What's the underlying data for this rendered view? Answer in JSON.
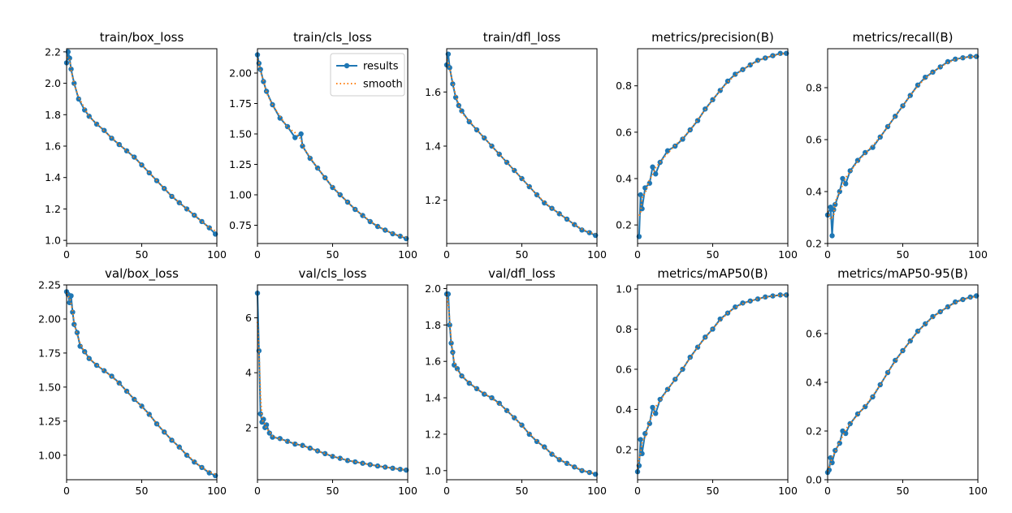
{
  "legend": {
    "labels": [
      "results",
      "smooth"
    ]
  },
  "colors": {
    "results": "#1f77b4",
    "smooth": "#ff7f0e",
    "axes": "#000000"
  },
  "chart_data": [
    {
      "type": "line",
      "title": "train/box_loss",
      "xlim": [
        0,
        100
      ],
      "ylim": [
        0.98,
        2.22
      ],
      "xticks": [
        "0",
        "50",
        "100"
      ],
      "xtick_values": [
        0,
        50,
        100
      ],
      "yticks": [
        "1.0",
        "1.2",
        "1.4",
        "1.6",
        "1.8",
        "2.0",
        "2.2"
      ],
      "ytick_values": [
        1.0,
        1.2,
        1.4,
        1.6,
        1.8,
        2.0,
        2.2
      ],
      "x": [
        0,
        1,
        2,
        3,
        5,
        8,
        12,
        15,
        20,
        25,
        30,
        35,
        40,
        45,
        50,
        55,
        60,
        65,
        70,
        75,
        80,
        85,
        90,
        95,
        99
      ],
      "y": [
        2.13,
        2.2,
        2.16,
        2.09,
        2.0,
        1.9,
        1.83,
        1.79,
        1.74,
        1.7,
        1.65,
        1.61,
        1.57,
        1.53,
        1.48,
        1.43,
        1.38,
        1.33,
        1.28,
        1.24,
        1.2,
        1.16,
        1.12,
        1.08,
        1.04
      ]
    },
    {
      "type": "line",
      "title": "train/cls_loss",
      "xlim": [
        0,
        100
      ],
      "ylim": [
        0.6,
        2.2
      ],
      "xticks": [
        "0",
        "50",
        "100"
      ],
      "xtick_values": [
        0,
        50,
        100
      ],
      "yticks": [
        "0.75",
        "1.00",
        "1.25",
        "1.50",
        "1.75",
        "2.00"
      ],
      "ytick_values": [
        0.75,
        1.0,
        1.25,
        1.5,
        1.75,
        2.0
      ],
      "x": [
        0,
        1,
        2,
        4,
        6,
        10,
        15,
        20,
        25,
        29,
        30,
        35,
        40,
        45,
        50,
        55,
        60,
        65,
        70,
        75,
        80,
        85,
        90,
        95,
        99
      ],
      "y": [
        2.15,
        2.08,
        2.03,
        1.93,
        1.85,
        1.74,
        1.63,
        1.56,
        1.47,
        1.5,
        1.4,
        1.3,
        1.22,
        1.14,
        1.06,
        1.0,
        0.94,
        0.88,
        0.83,
        0.78,
        0.74,
        0.71,
        0.68,
        0.66,
        0.64
      ]
    },
    {
      "type": "line",
      "title": "train/dfl_loss",
      "xlim": [
        0,
        100
      ],
      "ylim": [
        1.04,
        1.76
      ],
      "xticks": [
        "0",
        "50",
        "100"
      ],
      "xtick_values": [
        0,
        50,
        100
      ],
      "yticks": [
        "1.2",
        "1.4",
        "1.6"
      ],
      "ytick_values": [
        1.2,
        1.4,
        1.6
      ],
      "x": [
        0,
        1,
        2,
        4,
        6,
        8,
        10,
        15,
        20,
        25,
        30,
        35,
        40,
        45,
        50,
        55,
        60,
        65,
        70,
        75,
        80,
        85,
        90,
        95,
        99
      ],
      "y": [
        1.7,
        1.74,
        1.69,
        1.63,
        1.58,
        1.55,
        1.53,
        1.49,
        1.46,
        1.43,
        1.4,
        1.37,
        1.34,
        1.31,
        1.28,
        1.25,
        1.22,
        1.19,
        1.17,
        1.15,
        1.13,
        1.11,
        1.09,
        1.08,
        1.07
      ]
    },
    {
      "type": "line",
      "title": "metrics/precision(B)",
      "xlim": [
        0,
        100
      ],
      "ylim": [
        0.12,
        0.96
      ],
      "xticks": [
        "0",
        "50",
        "100"
      ],
      "xtick_values": [
        0,
        50,
        100
      ],
      "yticks": [
        "0.2",
        "0.4",
        "0.6",
        "0.8"
      ],
      "ytick_values": [
        0.2,
        0.4,
        0.6,
        0.8
      ],
      "x": [
        1,
        2,
        3,
        5,
        8,
        10,
        12,
        15,
        20,
        25,
        30,
        35,
        40,
        45,
        50,
        55,
        60,
        65,
        70,
        75,
        80,
        85,
        90,
        95,
        99
      ],
      "y": [
        0.15,
        0.33,
        0.27,
        0.36,
        0.38,
        0.45,
        0.42,
        0.47,
        0.52,
        0.54,
        0.57,
        0.61,
        0.65,
        0.7,
        0.74,
        0.78,
        0.82,
        0.85,
        0.87,
        0.89,
        0.91,
        0.92,
        0.93,
        0.94,
        0.94
      ]
    },
    {
      "type": "line",
      "title": "metrics/recall(B)",
      "xlim": [
        0,
        100
      ],
      "ylim": [
        0.2,
        0.95
      ],
      "xticks": [
        "0",
        "50",
        "100"
      ],
      "xtick_values": [
        0,
        50,
        100
      ],
      "yticks": [
        "0.2",
        "0.4",
        "0.6",
        "0.8"
      ],
      "ytick_values": [
        0.2,
        0.4,
        0.6,
        0.8
      ],
      "x": [
        0,
        2,
        3,
        4,
        5,
        8,
        10,
        12,
        15,
        20,
        25,
        30,
        35,
        40,
        45,
        50,
        55,
        60,
        65,
        70,
        75,
        80,
        85,
        90,
        95,
        99
      ],
      "y": [
        0.31,
        0.34,
        0.23,
        0.33,
        0.35,
        0.4,
        0.45,
        0.43,
        0.48,
        0.52,
        0.55,
        0.57,
        0.61,
        0.65,
        0.69,
        0.73,
        0.77,
        0.81,
        0.84,
        0.86,
        0.88,
        0.9,
        0.91,
        0.915,
        0.92,
        0.92
      ]
    },
    {
      "type": "line",
      "title": "val/box_loss",
      "xlim": [
        0,
        100
      ],
      "ylim": [
        0.82,
        2.25
      ],
      "xticks": [
        "0",
        "50",
        "100"
      ],
      "xtick_values": [
        0,
        50,
        100
      ],
      "yticks": [
        "1.00",
        "1.25",
        "1.50",
        "1.75",
        "2.00",
        "2.25"
      ],
      "ytick_values": [
        1.0,
        1.25,
        1.5,
        1.75,
        2.0,
        2.25
      ],
      "x": [
        0,
        1,
        2,
        3,
        4,
        5,
        7,
        9,
        12,
        15,
        20,
        25,
        30,
        35,
        40,
        45,
        50,
        55,
        60,
        65,
        70,
        75,
        80,
        85,
        90,
        95,
        99
      ],
      "y": [
        2.2,
        2.18,
        2.12,
        2.17,
        2.05,
        1.96,
        1.9,
        1.8,
        1.76,
        1.71,
        1.66,
        1.62,
        1.58,
        1.53,
        1.47,
        1.41,
        1.36,
        1.3,
        1.23,
        1.17,
        1.11,
        1.06,
        1.0,
        0.95,
        0.91,
        0.87,
        0.85
      ]
    },
    {
      "type": "line",
      "title": "val/cls_loss",
      "xlim": [
        0,
        100
      ],
      "ylim": [
        0.1,
        7.2
      ],
      "xticks": [
        "0",
        "50",
        "100"
      ],
      "xtick_values": [
        0,
        50,
        100
      ],
      "yticks": [
        "2",
        "4",
        "6"
      ],
      "ytick_values": [
        2,
        4,
        6
      ],
      "x": [
        0,
        1,
        2,
        3,
        4,
        5,
        6,
        8,
        10,
        15,
        20,
        25,
        30,
        35,
        40,
        45,
        50,
        55,
        60,
        65,
        70,
        75,
        80,
        85,
        90,
        95,
        99
      ],
      "y": [
        6.9,
        4.8,
        2.5,
        2.2,
        2.3,
        2.0,
        2.1,
        1.8,
        1.65,
        1.6,
        1.5,
        1.4,
        1.35,
        1.25,
        1.15,
        1.05,
        0.95,
        0.88,
        0.8,
        0.75,
        0.7,
        0.65,
        0.6,
        0.56,
        0.52,
        0.48,
        0.45
      ]
    },
    {
      "type": "line",
      "title": "val/dfl_loss",
      "xlim": [
        0,
        100
      ],
      "ylim": [
        0.95,
        2.02
      ],
      "xticks": [
        "0",
        "50",
        "100"
      ],
      "xtick_values": [
        0,
        50,
        100
      ],
      "yticks": [
        "1.0",
        "1.2",
        "1.4",
        "1.6",
        "1.8",
        "2.0"
      ],
      "ytick_values": [
        1.0,
        1.2,
        1.4,
        1.6,
        1.8,
        2.0
      ],
      "x": [
        0,
        1,
        2,
        3,
        4,
        5,
        7,
        10,
        15,
        20,
        25,
        30,
        35,
        40,
        45,
        50,
        55,
        60,
        65,
        70,
        75,
        80,
        85,
        90,
        95,
        99
      ],
      "y": [
        1.97,
        1.97,
        1.8,
        1.7,
        1.65,
        1.58,
        1.56,
        1.52,
        1.48,
        1.45,
        1.42,
        1.4,
        1.37,
        1.33,
        1.29,
        1.25,
        1.2,
        1.16,
        1.13,
        1.09,
        1.06,
        1.04,
        1.02,
        1.0,
        0.99,
        0.98
      ]
    },
    {
      "type": "line",
      "title": "metrics/mAP50(B)",
      "xlim": [
        0,
        100
      ],
      "ylim": [
        0.05,
        1.02
      ],
      "xticks": [
        "0",
        "50",
        "100"
      ],
      "xtick_values": [
        0,
        50,
        100
      ],
      "yticks": [
        "0.2",
        "0.4",
        "0.6",
        "0.8",
        "1.0"
      ],
      "ytick_values": [
        0.2,
        0.4,
        0.6,
        0.8,
        1.0
      ],
      "x": [
        0,
        1,
        2,
        3,
        5,
        8,
        10,
        12,
        15,
        20,
        25,
        30,
        35,
        40,
        45,
        50,
        55,
        60,
        65,
        70,
        75,
        80,
        85,
        90,
        95,
        99
      ],
      "y": [
        0.09,
        0.12,
        0.25,
        0.18,
        0.28,
        0.33,
        0.41,
        0.38,
        0.45,
        0.5,
        0.55,
        0.6,
        0.66,
        0.71,
        0.76,
        0.8,
        0.85,
        0.88,
        0.91,
        0.93,
        0.94,
        0.95,
        0.96,
        0.965,
        0.97,
        0.97
      ]
    },
    {
      "type": "line",
      "title": "metrics/mAP50-95(B)",
      "xlim": [
        0,
        100
      ],
      "ylim": [
        0.0,
        0.8
      ],
      "xticks": [
        "0",
        "50",
        "100"
      ],
      "xtick_values": [
        0,
        50,
        100
      ],
      "yticks": [
        "0.0",
        "0.2",
        "0.4",
        "0.6"
      ],
      "ytick_values": [
        0.0,
        0.2,
        0.4,
        0.6
      ],
      "x": [
        0,
        1,
        2,
        3,
        5,
        8,
        10,
        12,
        15,
        20,
        25,
        30,
        35,
        40,
        45,
        50,
        55,
        60,
        65,
        70,
        75,
        80,
        85,
        90,
        95,
        99
      ],
      "y": [
        0.03,
        0.04,
        0.09,
        0.07,
        0.12,
        0.15,
        0.2,
        0.19,
        0.23,
        0.27,
        0.3,
        0.34,
        0.39,
        0.44,
        0.49,
        0.53,
        0.57,
        0.61,
        0.64,
        0.67,
        0.69,
        0.71,
        0.73,
        0.74,
        0.75,
        0.755
      ]
    }
  ]
}
